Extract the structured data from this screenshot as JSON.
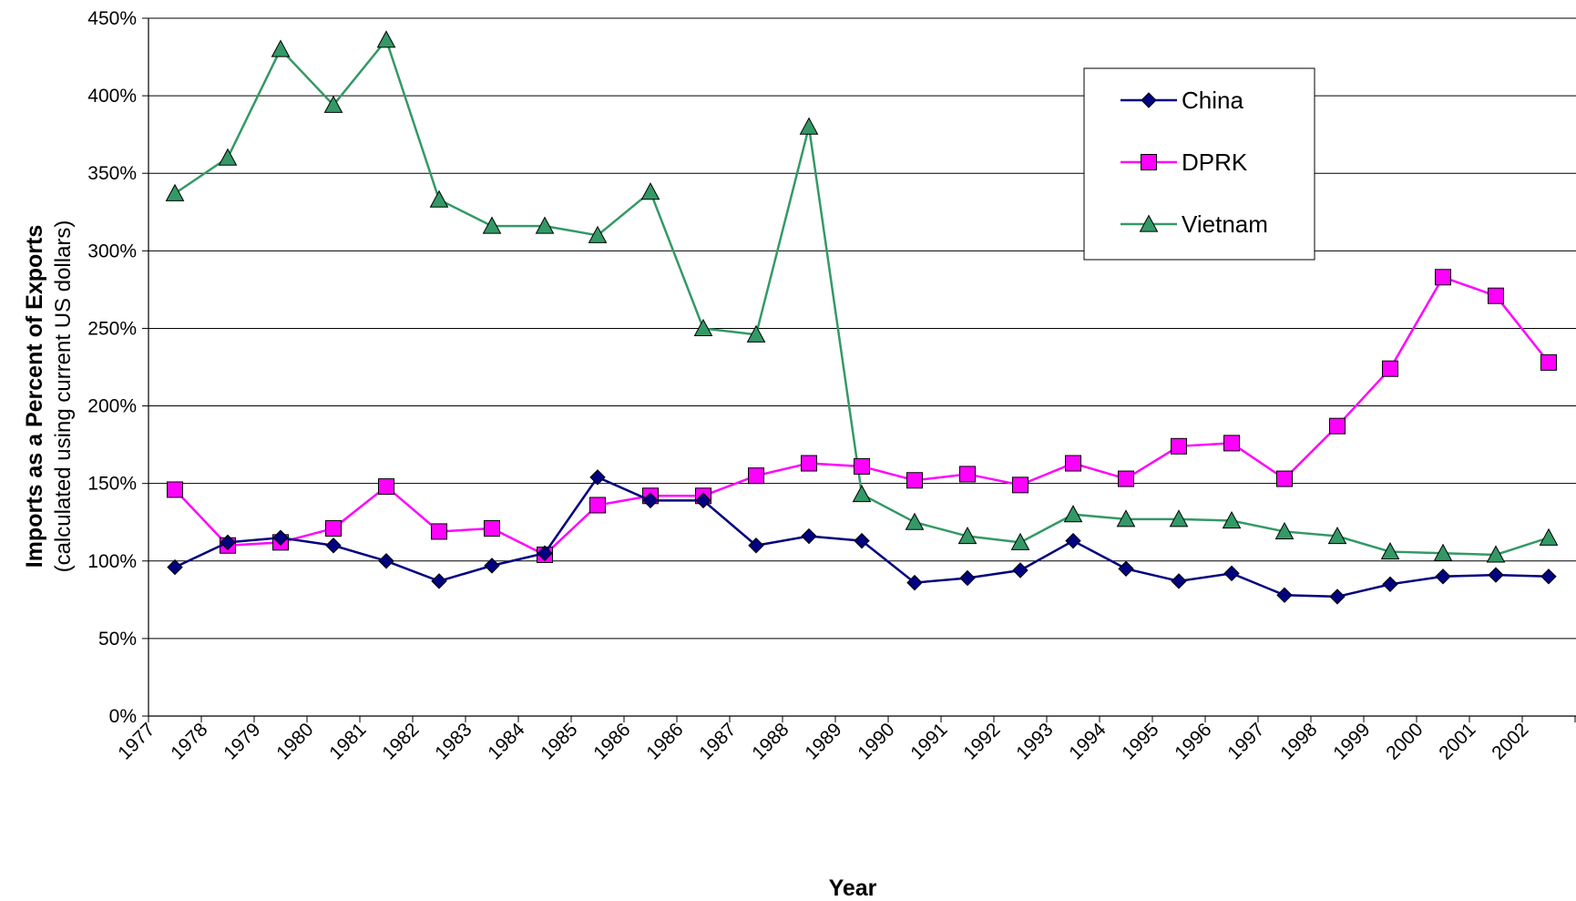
{
  "chart_data": {
    "type": "line",
    "title": "",
    "xlabel": "Year",
    "ylabel": "Imports as a Percent of Exports",
    "ylabel_sub": "(calculated using current US dollars)",
    "ylim": [
      0,
      450
    ],
    "ytick_step": 50,
    "ytick_suffix": "%",
    "grid": "horizontal",
    "legend_position": "top-right",
    "categories": [
      "1977",
      "1978",
      "1979",
      "1980",
      "1981",
      "1982",
      "1983",
      "1984",
      "1985",
      "1986",
      "1986",
      "1987",
      "1988",
      "1989",
      "1990",
      "1991",
      "1992",
      "1993",
      "1994",
      "1995",
      "1996",
      "1997",
      "1998",
      "1999",
      "2000",
      "2001",
      "2002"
    ],
    "series": [
      {
        "name": "China",
        "color": "#000080",
        "marker": "diamond",
        "values": [
          96,
          112,
          115,
          110,
          100,
          87,
          97,
          105,
          154,
          139,
          139,
          110,
          116,
          113,
          86,
          89,
          94,
          113,
          95,
          87,
          92,
          78,
          77,
          85,
          90,
          91,
          90
        ]
      },
      {
        "name": "DPRK",
        "color": "#ff00ff",
        "marker": "square",
        "values": [
          146,
          110,
          112,
          121,
          148,
          119,
          121,
          104,
          136,
          142,
          142,
          155,
          163,
          161,
          152,
          156,
          149,
          163,
          153,
          174,
          176,
          153,
          187,
          224,
          283,
          271,
          228
        ]
      },
      {
        "name": "Vietnam",
        "color": "#339966",
        "marker": "triangle",
        "values": [
          337,
          360,
          430,
          394,
          436,
          333,
          316,
          316,
          310,
          338,
          250,
          246,
          380,
          143,
          125,
          116,
          112,
          130,
          127,
          127,
          126,
          119,
          116,
          106,
          105,
          104,
          115
        ]
      }
    ]
  }
}
